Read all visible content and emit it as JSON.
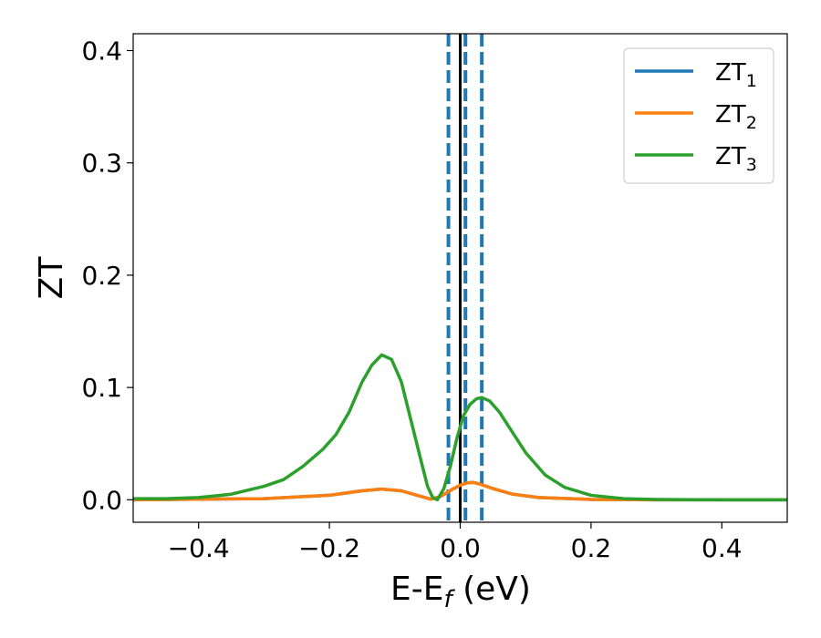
{
  "chart_data": {
    "type": "line",
    "xlabel": "E-E",
    "xlabel_sub": "f",
    "xlabel_unit": " (eV)",
    "ylabel": "ZT",
    "xlim": [
      -0.5,
      0.5
    ],
    "ylim": [
      -0.02,
      0.415
    ],
    "x_ticks": [
      -0.4,
      -0.2,
      0.0,
      0.2,
      0.4
    ],
    "x_tick_labels": [
      "−0.4",
      "−0.2",
      "0.0",
      "0.2",
      "0.4"
    ],
    "y_ticks": [
      0.0,
      0.1,
      0.2,
      0.3,
      0.4
    ],
    "y_tick_labels": [
      "0.0",
      "0.1",
      "0.2",
      "0.3",
      "0.4"
    ],
    "grid": false,
    "legend_position": "top-right",
    "vertical_lines": [
      {
        "x": 0.0,
        "style": "solid",
        "color": "#000000"
      },
      {
        "x": -0.018,
        "style": "dashed",
        "color": "#1f77b4"
      },
      {
        "x": 0.008,
        "style": "dashed",
        "color": "#1f77b4"
      },
      {
        "x": 0.033,
        "style": "dashed",
        "color": "#1f77b4"
      }
    ],
    "series": [
      {
        "name": "ZT",
        "name_sub": "1",
        "color": "#1f77b4",
        "x": [
          -0.5,
          -0.3,
          -0.2,
          -0.15,
          -0.12,
          -0.09,
          -0.06,
          -0.045,
          -0.03,
          -0.01,
          0.0,
          0.01,
          0.02,
          0.03,
          0.05,
          0.08,
          0.12,
          0.2,
          0.3,
          0.5
        ],
        "y": [
          0.0,
          0.001,
          0.004,
          0.008,
          0.0095,
          0.008,
          0.003,
          0.0005,
          0.003,
          0.01,
          0.013,
          0.015,
          0.0155,
          0.014,
          0.01,
          0.005,
          0.002,
          0.0003,
          0.0,
          0.0
        ]
      },
      {
        "name": "ZT",
        "name_sub": "2",
        "color": "#ff7f0e",
        "x": [
          -0.5,
          -0.3,
          -0.2,
          -0.15,
          -0.12,
          -0.09,
          -0.06,
          -0.045,
          -0.03,
          -0.01,
          0.0,
          0.01,
          0.02,
          0.03,
          0.05,
          0.08,
          0.12,
          0.2,
          0.3,
          0.5
        ],
        "y": [
          0.0,
          0.001,
          0.004,
          0.008,
          0.0095,
          0.008,
          0.003,
          0.0005,
          0.003,
          0.01,
          0.013,
          0.015,
          0.0155,
          0.014,
          0.01,
          0.005,
          0.002,
          0.0003,
          0.0,
          0.0
        ]
      },
      {
        "name": "ZT",
        "name_sub": "3",
        "color": "#2ca02c",
        "x": [
          -0.5,
          -0.45,
          -0.4,
          -0.35,
          -0.3,
          -0.27,
          -0.24,
          -0.21,
          -0.19,
          -0.17,
          -0.15,
          -0.135,
          -0.12,
          -0.105,
          -0.09,
          -0.075,
          -0.06,
          -0.05,
          -0.042,
          -0.035,
          -0.025,
          -0.015,
          -0.005,
          0.005,
          0.015,
          0.025,
          0.033,
          0.045,
          0.06,
          0.08,
          0.1,
          0.13,
          0.16,
          0.2,
          0.25,
          0.3,
          0.4,
          0.5
        ],
        "y": [
          0.001,
          0.001,
          0.002,
          0.005,
          0.012,
          0.018,
          0.03,
          0.045,
          0.058,
          0.078,
          0.105,
          0.12,
          0.129,
          0.125,
          0.105,
          0.07,
          0.035,
          0.012,
          0.002,
          0.0,
          0.01,
          0.03,
          0.055,
          0.075,
          0.085,
          0.09,
          0.091,
          0.088,
          0.078,
          0.06,
          0.042,
          0.022,
          0.011,
          0.004,
          0.001,
          0.0003,
          0.0,
          0.0
        ]
      }
    ]
  }
}
